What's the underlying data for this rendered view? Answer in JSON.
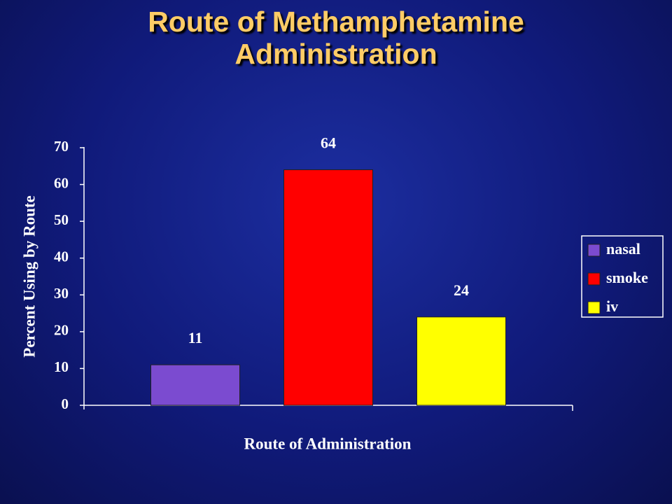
{
  "chart_data": {
    "type": "bar",
    "title": "Route of Methamphetamine Administration",
    "xlabel": "Route of Administration",
    "ylabel": "Percent Using by Route",
    "categories": [
      null
    ],
    "series": [
      {
        "name": "nasal",
        "color": "#7b4bd0",
        "values": [
          11
        ]
      },
      {
        "name": "smoke",
        "color": "#ff0000",
        "values": [
          64
        ]
      },
      {
        "name": "iv",
        "color": "#ffff00",
        "values": [
          24
        ]
      }
    ],
    "ylim": [
      0,
      70
    ],
    "yticks": [
      0,
      10,
      20,
      30,
      40,
      50,
      60,
      70
    ],
    "grid": false,
    "legend": "right",
    "data_labels": true
  }
}
